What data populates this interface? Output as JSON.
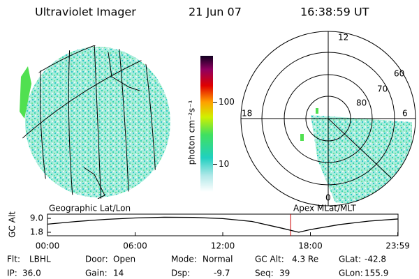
{
  "header": {
    "title": "Ultraviolet Imager",
    "date": "21 Jun 07",
    "time": "16:38:59 UT"
  },
  "colorbar": {
    "label": "photon cm⁻²s⁻¹",
    "log": true,
    "lim": [
      3.6,
      560
    ],
    "ticks": [
      10,
      100
    ]
  },
  "polar": {
    "hour_labels": [
      "12",
      "18",
      "6",
      "0"
    ],
    "lat_labels": [
      "60",
      "70",
      "80"
    ]
  },
  "altitude": {
    "left_label": "Geographic Lat/Lon",
    "right_label": "Apex MLat/MLT",
    "ylabel": "GC Alt",
    "ylim": [
      0,
      11.2
    ],
    "yticks": [
      {
        "value": 9.0,
        "label": "9.0"
      },
      {
        "value": 1.8,
        "label": "1.8"
      }
    ],
    "xlim": [
      0,
      24
    ],
    "xticks": [
      {
        "value": 0,
        "label": "00:00"
      },
      {
        "value": 6,
        "label": "06:00"
      },
      {
        "value": 12,
        "label": "12:00"
      },
      {
        "value": 18,
        "label": "18:00"
      },
      {
        "value": 23.98,
        "label": "23:59"
      }
    ],
    "x": [
      0,
      2,
      4,
      6,
      8,
      10,
      12,
      14,
      16,
      17.2,
      18,
      20,
      22,
      24
    ],
    "values": [
      6.0,
      7.4,
      8.5,
      9.2,
      9.6,
      9.5,
      8.9,
      7.4,
      4.0,
      1.8,
      3.2,
      5.8,
      7.6,
      8.7
    ],
    "color": "#000000",
    "marker": 16.65,
    "marker_color": "#cc0000"
  },
  "footer": [
    [
      {
        "label": "Flt:",
        "value": "LBHL"
      },
      {
        "label": "Door:",
        "value": "Open"
      },
      {
        "label": "Mode:",
        "value": "Normal"
      },
      {
        "label": "GC Alt:",
        "value": "4.3 Re"
      },
      {
        "label": "GLat:",
        "value": "-42.8"
      }
    ],
    [
      {
        "label": "IP:",
        "value": "36.0"
      },
      {
        "label": "Gain:",
        "value": "14"
      },
      {
        "label": "Dsp:",
        "value": "-9.7"
      },
      {
        "label": "Seq:",
        "value": "39"
      },
      {
        "label": "GLon:",
        "value": "155.9"
      }
    ]
  ]
}
